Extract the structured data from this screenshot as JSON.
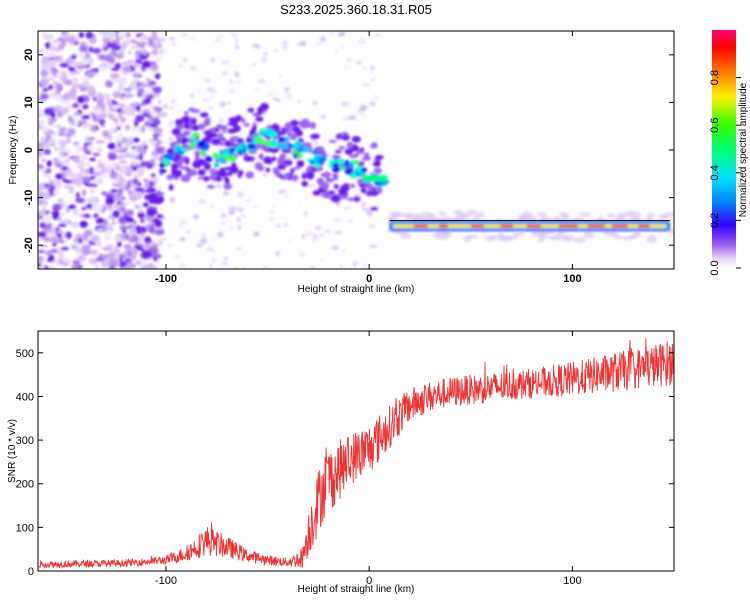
{
  "title": "S233.2025.360.18.31.R05",
  "chart_data": [
    {
      "type": "heatmap",
      "name": "spectrogram",
      "xlabel": "Height of straight line (km)",
      "ylabel": "Frequency (Hz)",
      "xlim": [
        -163,
        150
      ],
      "ylim": [
        -25,
        25
      ],
      "xticks": [
        -100,
        0,
        100
      ],
      "yticks": [
        20,
        10,
        0,
        -10,
        -20
      ],
      "colorbar": {
        "label": "Normalized spectral amplitude",
        "range": [
          0,
          1
        ],
        "ticks": [
          0.0,
          0.2,
          0.4,
          0.6,
          0.8
        ]
      },
      "trace": [
        {
          "x": -103,
          "y": -4
        },
        {
          "x": -95,
          "y": 0
        },
        {
          "x": -85,
          "y": 2
        },
        {
          "x": -75,
          "y": -2
        },
        {
          "x": -65,
          "y": 0
        },
        {
          "x": -52,
          "y": 3
        },
        {
          "x": -40,
          "y": 1
        },
        {
          "x": -30,
          "y": -1
        },
        {
          "x": -22,
          "y": -3
        },
        {
          "x": -12,
          "y": -4
        },
        {
          "x": -5,
          "y": -4
        },
        {
          "x": 2,
          "y": -6
        },
        {
          "x": 8,
          "y": -6
        },
        {
          "x": 10,
          "y": -16
        },
        {
          "x": 40,
          "y": -16
        },
        {
          "x": 80,
          "y": -16
        },
        {
          "x": 120,
          "y": -16
        },
        {
          "x": 148,
          "y": -16
        }
      ]
    },
    {
      "type": "line",
      "name": "snr",
      "xlabel": "Height of straight line (km)",
      "ylabel": "SNR (10 * v/v)",
      "xlim": [
        -163,
        150
      ],
      "ylim": [
        0,
        550
      ],
      "xticks": [
        -100,
        0,
        100
      ],
      "yticks": [
        0,
        100,
        200,
        300,
        400,
        500
      ],
      "color": "#ee3333",
      "envelope": {
        "x": [
          -163,
          -120,
          -100,
          -90,
          -80,
          -70,
          -60,
          -50,
          -40,
          -33,
          -28,
          -22,
          -15,
          -8,
          0,
          10,
          20,
          30,
          40,
          60,
          80,
          100,
          120,
          140,
          150
        ],
        "y": [
          15,
          18,
          25,
          40,
          70,
          55,
          35,
          25,
          20,
          30,
          120,
          200,
          230,
          260,
          280,
          330,
          380,
          400,
          410,
          420,
          430,
          440,
          455,
          470,
          480
        ],
        "amp": [
          8,
          8,
          10,
          18,
          35,
          25,
          15,
          12,
          10,
          25,
          70,
          80,
          70,
          60,
          60,
          50,
          40,
          35,
          35,
          35,
          35,
          40,
          45,
          50,
          55
        ]
      }
    }
  ]
}
